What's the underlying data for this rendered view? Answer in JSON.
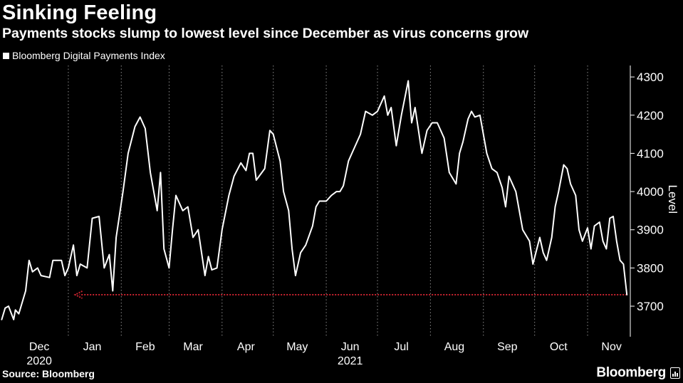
{
  "title": "Sinking Feeling",
  "subtitle": "Payments stocks slump to lowest level since December as virus concerns grow",
  "source": "Source: Bloomberg",
  "brand": "Bloomberg",
  "colors": {
    "background": "#000000",
    "line": "#ffffff",
    "grid": "#8a8a8a",
    "reference_arrow": "#c8242f"
  },
  "chart_data": {
    "type": "line",
    "legend": [
      "Bloomberg Digital Payments Index"
    ],
    "legend_placement": "top-left",
    "ylabel": "Level",
    "xlabel": "",
    "ylim": [
      3620,
      4330
    ],
    "y_ticks": [
      3700,
      3800,
      3900,
      4000,
      4100,
      4200,
      4300
    ],
    "y_axis_side": "right",
    "grid": "vertical dotted",
    "x_tick_labels": [
      "Dec",
      "Jan",
      "Feb",
      "Mar",
      "Apr",
      "May",
      "Jun",
      "Jul",
      "Aug",
      "Sep",
      "Oct",
      "Nov"
    ],
    "x_year_labels": [
      {
        "label": "2020",
        "at": "Dec"
      },
      {
        "label": "2021",
        "at": "Jun"
      }
    ],
    "series": [
      {
        "name": "Bloomberg Digital Payments Index",
        "points": [
          [
            "2020-11-23",
            3665
          ],
          [
            "2020-11-25",
            3695
          ],
          [
            "2020-11-27",
            3700
          ],
          [
            "2020-11-30",
            3665
          ],
          [
            "2020-12-01",
            3690
          ],
          [
            "2020-12-03",
            3680
          ],
          [
            "2020-12-07",
            3740
          ],
          [
            "2020-12-09",
            3820
          ],
          [
            "2020-12-11",
            3790
          ],
          [
            "2020-12-14",
            3800
          ],
          [
            "2020-12-16",
            3780
          ],
          [
            "2020-12-21",
            3775
          ],
          [
            "2020-12-23",
            3820
          ],
          [
            "2020-12-28",
            3820
          ],
          [
            "2020-12-30",
            3780
          ],
          [
            "2021-01-01",
            3800
          ],
          [
            "2021-01-04",
            3860
          ],
          [
            "2021-01-06",
            3780
          ],
          [
            "2021-01-08",
            3810
          ],
          [
            "2021-01-12",
            3800
          ],
          [
            "2021-01-15",
            3930
          ],
          [
            "2021-01-19",
            3935
          ],
          [
            "2021-01-22",
            3800
          ],
          [
            "2021-01-25",
            3835
          ],
          [
            "2021-01-27",
            3740
          ],
          [
            "2021-01-29",
            3880
          ],
          [
            "2021-02-02",
            4000
          ],
          [
            "2021-02-05",
            4100
          ],
          [
            "2021-02-09",
            4170
          ],
          [
            "2021-02-12",
            4195
          ],
          [
            "2021-02-15",
            4165
          ],
          [
            "2021-02-18",
            4050
          ],
          [
            "2021-02-22",
            3950
          ],
          [
            "2021-02-24",
            4050
          ],
          [
            "2021-02-26",
            3850
          ],
          [
            "2021-03-01",
            3800
          ],
          [
            "2021-03-03",
            3900
          ],
          [
            "2021-03-05",
            3990
          ],
          [
            "2021-03-09",
            3950
          ],
          [
            "2021-03-12",
            3960
          ],
          [
            "2021-03-15",
            3880
          ],
          [
            "2021-03-18",
            3900
          ],
          [
            "2021-03-22",
            3780
          ],
          [
            "2021-03-24",
            3830
          ],
          [
            "2021-03-26",
            3795
          ],
          [
            "2021-03-29",
            3800
          ],
          [
            "2021-04-01",
            3900
          ],
          [
            "2021-04-05",
            3990
          ],
          [
            "2021-04-08",
            4040
          ],
          [
            "2021-04-12",
            4075
          ],
          [
            "2021-04-15",
            4055
          ],
          [
            "2021-04-17",
            4100
          ],
          [
            "2021-04-19",
            4100
          ],
          [
            "2021-04-21",
            4030
          ],
          [
            "2021-04-26",
            4060
          ],
          [
            "2021-04-29",
            4160
          ],
          [
            "2021-05-01",
            4150
          ],
          [
            "2021-05-05",
            4080
          ],
          [
            "2021-05-07",
            4000
          ],
          [
            "2021-05-10",
            3950
          ],
          [
            "2021-05-12",
            3850
          ],
          [
            "2021-05-14",
            3780
          ],
          [
            "2021-05-17",
            3840
          ],
          [
            "2021-05-20",
            3860
          ],
          [
            "2021-05-24",
            3910
          ],
          [
            "2021-05-26",
            3960
          ],
          [
            "2021-05-28",
            3975
          ],
          [
            "2021-06-01",
            3975
          ],
          [
            "2021-06-04",
            3990
          ],
          [
            "2021-06-07",
            4000
          ],
          [
            "2021-06-09",
            4000
          ],
          [
            "2021-06-11",
            4015
          ],
          [
            "2021-06-14",
            4080
          ],
          [
            "2021-06-16",
            4100
          ],
          [
            "2021-06-21",
            4150
          ],
          [
            "2021-06-24",
            4210
          ],
          [
            "2021-06-28",
            4200
          ],
          [
            "2021-07-01",
            4210
          ],
          [
            "2021-07-05",
            4250
          ],
          [
            "2021-07-07",
            4200
          ],
          [
            "2021-07-09",
            4220
          ],
          [
            "2021-07-12",
            4120
          ],
          [
            "2021-07-15",
            4200
          ],
          [
            "2021-07-19",
            4290
          ],
          [
            "2021-07-21",
            4180
          ],
          [
            "2021-07-23",
            4220
          ],
          [
            "2021-07-27",
            4100
          ],
          [
            "2021-07-30",
            4160
          ],
          [
            "2021-08-02",
            4180
          ],
          [
            "2021-08-05",
            4180
          ],
          [
            "2021-08-09",
            4140
          ],
          [
            "2021-08-12",
            4050
          ],
          [
            "2021-08-16",
            4020
          ],
          [
            "2021-08-18",
            4100
          ],
          [
            "2021-08-20",
            4130
          ],
          [
            "2021-08-23",
            4190
          ],
          [
            "2021-08-25",
            4210
          ],
          [
            "2021-08-27",
            4195
          ],
          [
            "2021-08-30",
            4200
          ],
          [
            "2021-09-01",
            4150
          ],
          [
            "2021-09-03",
            4100
          ],
          [
            "2021-09-06",
            4060
          ],
          [
            "2021-09-09",
            4050
          ],
          [
            "2021-09-12",
            4010
          ],
          [
            "2021-09-14",
            3960
          ],
          [
            "2021-09-16",
            4040
          ],
          [
            "2021-09-20",
            4000
          ],
          [
            "2021-09-22",
            3950
          ],
          [
            "2021-09-24",
            3900
          ],
          [
            "2021-09-28",
            3870
          ],
          [
            "2021-09-30",
            3810
          ],
          [
            "2021-10-04",
            3880
          ],
          [
            "2021-10-06",
            3840
          ],
          [
            "2021-10-08",
            3820
          ],
          [
            "2021-10-11",
            3880
          ],
          [
            "2021-10-13",
            3960
          ],
          [
            "2021-10-15",
            4000
          ],
          [
            "2021-10-18",
            4070
          ],
          [
            "2021-10-20",
            4060
          ],
          [
            "2021-10-22",
            4020
          ],
          [
            "2021-10-25",
            3990
          ],
          [
            "2021-10-27",
            3900
          ],
          [
            "2021-10-29",
            3870
          ],
          [
            "2021-11-01",
            3905
          ],
          [
            "2021-11-03",
            3850
          ],
          [
            "2021-11-05",
            3910
          ],
          [
            "2021-11-08",
            3920
          ],
          [
            "2021-11-10",
            3870
          ],
          [
            "2021-11-12",
            3850
          ],
          [
            "2021-11-14",
            3930
          ],
          [
            "2021-11-16",
            3935
          ],
          [
            "2021-11-18",
            3870
          ],
          [
            "2021-11-20",
            3820
          ],
          [
            "2021-11-22",
            3810
          ],
          [
            "2021-11-24",
            3730
          ]
        ]
      }
    ],
    "annotations": [
      {
        "type": "reference-arrow",
        "y": 3730,
        "from": "2021-11-24",
        "to": "2021-01-05",
        "style": "dotted red line with arrowhead"
      }
    ]
  }
}
